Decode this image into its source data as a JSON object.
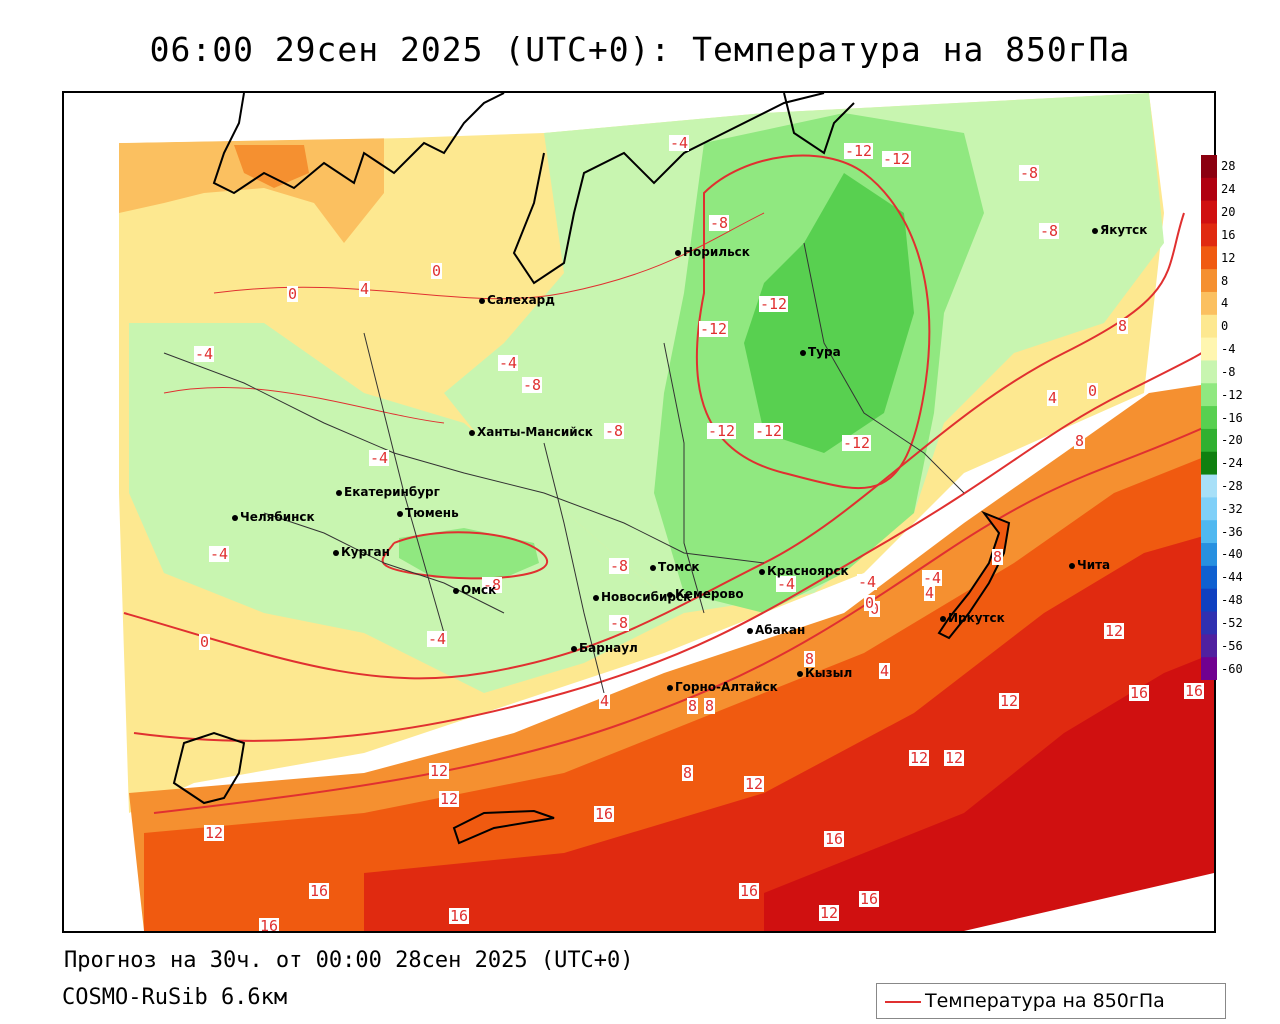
{
  "title": "06:00 29сен 2025 (UTC+0): Температура на 850гПа",
  "forecast_info": "Прогноз на 30ч. от 00:00 28сен 2025 (UTC+0)",
  "model_info": "COSMO-RuSib 6.6км",
  "legend": {
    "label": "Температура на 850гПа",
    "line_color": "#e03030"
  },
  "colorbar": {
    "ticks": [
      "28",
      "24",
      "20",
      "16",
      "12",
      "8",
      "4",
      "0",
      "-4",
      "-8",
      "-12",
      "-16",
      "-20",
      "-24",
      "-28",
      "-32",
      "-36",
      "-40",
      "-44",
      "-48",
      "-52",
      "-56",
      "-60"
    ],
    "colors": [
      "#8b0010",
      "#b00010",
      "#d01010",
      "#e02a10",
      "#f05a10",
      "#f59030",
      "#fbc060",
      "#fde890",
      "#fff6b0",
      "#c8f5b0",
      "#90e880",
      "#58d050",
      "#30b030",
      "#108010",
      "#a8e0f8",
      "#80d0f8",
      "#50b8f0",
      "#2890e0",
      "#1060d0",
      "#1040c0",
      "#3030b0",
      "#5020a0",
      "#700090"
    ]
  },
  "cities": [
    {
      "name": "Норильск"
    },
    {
      "name": "Якутск"
    },
    {
      "name": "Салехард"
    },
    {
      "name": "Тура"
    },
    {
      "name": "Ханты-Мансийск"
    },
    {
      "name": "Екатеринбург"
    },
    {
      "name": "Тюмень"
    },
    {
      "name": "Челябинск"
    },
    {
      "name": "Курган"
    },
    {
      "name": "Омск"
    },
    {
      "name": "Томск"
    },
    {
      "name": "Красноярск"
    },
    {
      "name": "Новосибирск"
    },
    {
      "name": "Кемерово"
    },
    {
      "name": "Абакан"
    },
    {
      "name": "Иркутск"
    },
    {
      "name": "Чита"
    },
    {
      "name": "Барнаул"
    },
    {
      "name": "Горно-Алтайск"
    },
    {
      "name": "Кызыл"
    }
  ],
  "isotherm_labels": [
    "-4",
    "-12",
    "-12",
    "-8",
    "-8",
    "-8",
    "-12",
    "-12",
    "-4",
    "-4",
    "-8",
    "-12",
    "-12",
    "-8",
    "-12",
    "-4",
    "-4",
    "-8",
    "-8",
    "-4",
    "-4",
    "-8",
    "-4",
    "-4",
    "0",
    "4",
    "8",
    "0",
    "0",
    "4",
    "0",
    "4",
    "8",
    "8",
    "8",
    "12",
    "12",
    "12",
    "12",
    "16",
    "16",
    "16",
    "16",
    "16",
    "16",
    "16",
    "12",
    "12",
    "12",
    "12",
    "16",
    "16",
    "0",
    "4",
    "0",
    "8",
    "4",
    "8",
    "8",
    "12",
    "16"
  ]
}
